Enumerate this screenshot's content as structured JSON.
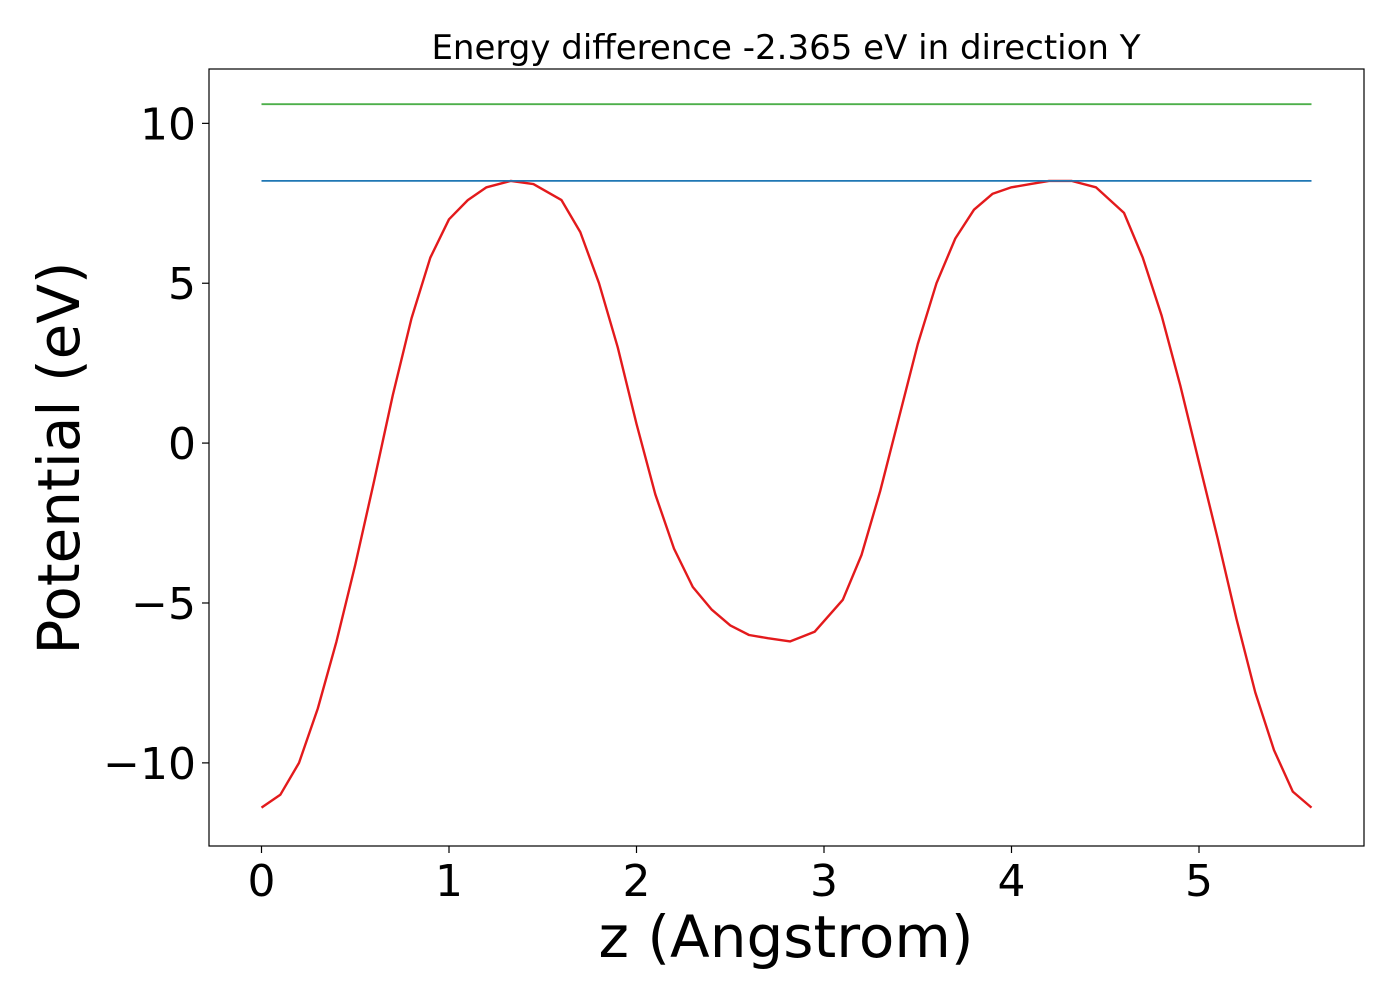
{
  "chart_data": {
    "type": "line",
    "title": "Energy difference -2.365 eV in direction Y",
    "xlabel": "z (Angstrom)",
    "ylabel": "Potential (eV)",
    "xlim": [
      -0.28,
      5.88
    ],
    "ylim": [
      -12.6,
      11.7
    ],
    "xticks": [
      0,
      1,
      2,
      3,
      4,
      5
    ],
    "xtick_labels": [
      "0",
      "1",
      "2",
      "3",
      "4",
      "5"
    ],
    "yticks": [
      -10,
      -5,
      0,
      5,
      10
    ],
    "ytick_labels": [
      "−10",
      "−5",
      "0",
      "5",
      "10"
    ],
    "grid": false,
    "legend": "none",
    "series": [
      {
        "color": "#e31a1c",
        "x": [
          0.0,
          0.1,
          0.2,
          0.3,
          0.4,
          0.5,
          0.6,
          0.7,
          0.8,
          0.9,
          1.0,
          1.1,
          1.2,
          1.33,
          1.45,
          1.6,
          1.7,
          1.8,
          1.9,
          2.0,
          2.1,
          2.2,
          2.3,
          2.4,
          2.5,
          2.6,
          2.7,
          2.82,
          2.95,
          3.1,
          3.2,
          3.3,
          3.4,
          3.5,
          3.6,
          3.7,
          3.8,
          3.9,
          4.0,
          4.1,
          4.2,
          4.32,
          4.45,
          4.6,
          4.7,
          4.8,
          4.9,
          5.0,
          5.1,
          5.2,
          5.3,
          5.4,
          5.5,
          5.6
        ],
        "y": [
          -11.4,
          -11.0,
          -10.0,
          -8.3,
          -6.2,
          -3.8,
          -1.2,
          1.5,
          3.9,
          5.8,
          7.0,
          7.6,
          8.0,
          8.2,
          8.1,
          7.6,
          6.6,
          5.0,
          3.0,
          0.6,
          -1.6,
          -3.3,
          -4.5,
          -5.2,
          -5.7,
          -6.0,
          -6.1,
          -6.2,
          -5.9,
          -4.9,
          -3.5,
          -1.5,
          0.8,
          3.1,
          5.0,
          6.4,
          7.3,
          7.8,
          8.0,
          8.1,
          8.2,
          8.2,
          8.0,
          7.2,
          5.8,
          4.0,
          1.8,
          -0.6,
          -3.0,
          -5.5,
          -7.8,
          -9.6,
          -10.9,
          -11.4
        ]
      },
      {
        "color": "#1f77b4",
        "x": [
          0.0,
          5.6
        ],
        "y": [
          8.2,
          8.2
        ]
      },
      {
        "color": "#4daf4a",
        "x": [
          0.0,
          5.6
        ],
        "y": [
          10.6,
          10.6
        ]
      }
    ]
  }
}
